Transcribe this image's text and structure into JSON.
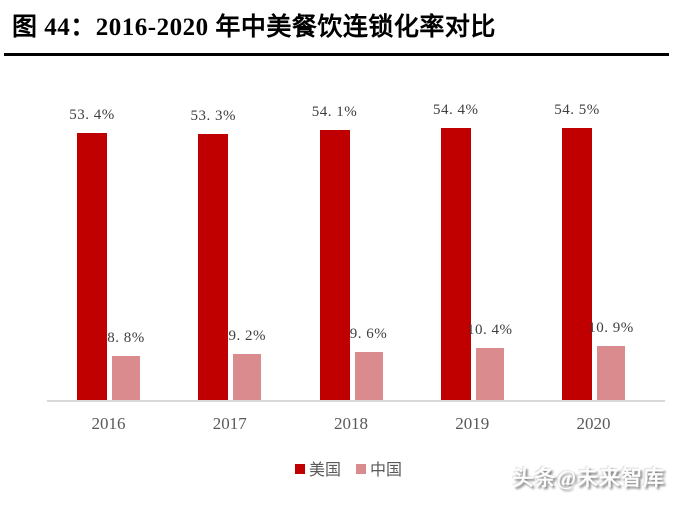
{
  "header": {
    "title": "图 44：2016-2020 年中美餐饮连锁化率对比"
  },
  "chart_data": {
    "type": "bar",
    "title": "2016-2020 年中美餐饮连锁化率对比",
    "categories": [
      "2016",
      "2017",
      "2018",
      "2019",
      "2020"
    ],
    "series": [
      {
        "name": "美国",
        "color": "#C00000",
        "values": [
          53.4,
          53.3,
          54.1,
          54.4,
          54.5
        ],
        "display_labels": [
          "53. 4%",
          "53. 3%",
          "54. 1%",
          "54. 4%",
          "54. 5%"
        ]
      },
      {
        "name": "中国",
        "color": "#D98B8E",
        "values": [
          8.8,
          9.2,
          9.6,
          10.4,
          10.9
        ],
        "display_labels": [
          "8. 8%",
          "9. 2%",
          "9. 6%",
          "10. 4%",
          "10. 9%"
        ]
      }
    ],
    "unit": "%",
    "ylim": [
      0,
      62
    ],
    "grid": false,
    "y_axis_visible": false,
    "x_axis_line_color": "#d9d9d9",
    "data_label_color": "#3f3f3f",
    "tick_label_color": "#595959",
    "legend_position": "bottom"
  },
  "legend": {
    "items": [
      {
        "label": "美国",
        "color": "#C00000"
      },
      {
        "label": "中国",
        "color": "#D98B8E"
      }
    ]
  },
  "watermark": {
    "text": "头条@未来智库"
  }
}
